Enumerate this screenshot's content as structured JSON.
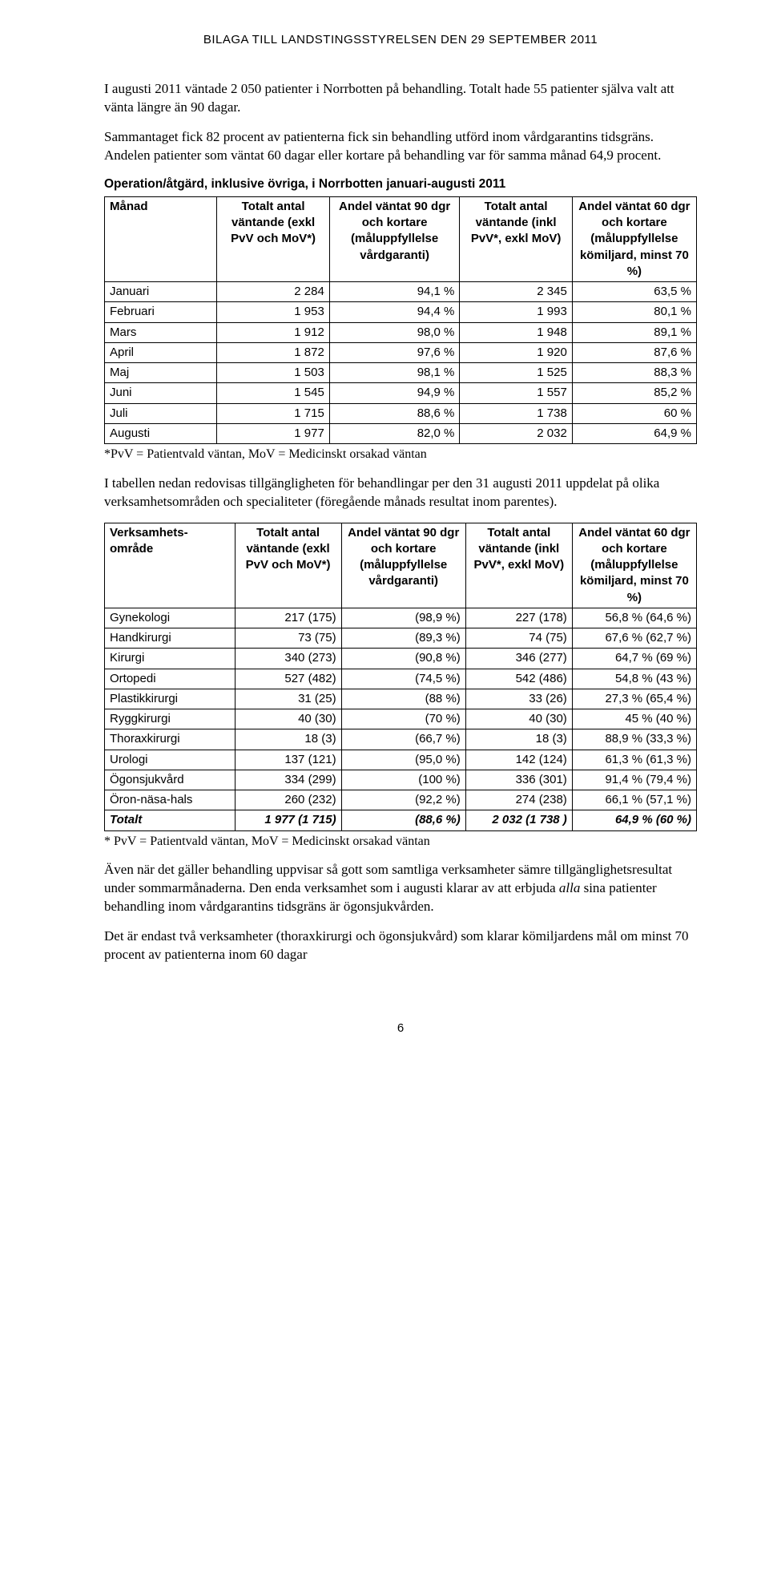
{
  "header": "BILAGA TILL LANDSTINGSSTYRELSEN DEN 29 SEPTEMBER 2011",
  "para1": "I augusti 2011 väntade 2 050 patienter i Norrbotten på behandling. Totalt hade 55 patienter själva valt att vänta längre än 90 dagar.",
  "para2": "Sammantaget fick 82 procent av patienterna fick sin behandling utförd inom vårdgarantins tidsgräns. Andelen patienter som väntat 60 dagar eller kortare på behandling var för samma månad 64,9 procent.",
  "t1": {
    "caption": "Operation/åtgärd, inklusive övriga, i Norrbotten januari-augusti 2011",
    "headers": [
      "Månad",
      "Totalt antal väntande (exkl PvV och MoV*)",
      "Andel väntat 90 dgr och kortare (måluppfyllelse vårdgaranti)",
      "Totalt antal väntande (inkl PvV*, exkl MoV)",
      "Andel väntat 60 dgr och kortare (måluppfyllelse kömiljard, minst 70 %)"
    ],
    "rows": [
      [
        "Januari",
        "2 284",
        "94,1 %",
        "2 345",
        "63,5 %"
      ],
      [
        "Februari",
        "1 953",
        "94,4 %",
        "1 993",
        "80,1 %"
      ],
      [
        "Mars",
        "1 912",
        "98,0 %",
        "1 948",
        "89,1 %"
      ],
      [
        "April",
        "1 872",
        "97,6 %",
        "1 920",
        "87,6 %"
      ],
      [
        "Maj",
        "1 503",
        "98,1 %",
        "1 525",
        "88,3 %"
      ],
      [
        "Juni",
        "1 545",
        "94,9 %",
        "1 557",
        "85,2 %"
      ],
      [
        "Juli",
        "1 715",
        "88,6 %",
        "1 738",
        "60 %"
      ],
      [
        "Augusti",
        "1 977",
        "82,0 %",
        "2 032",
        "64,9 %"
      ]
    ],
    "note": "*PvV = Patientvald väntan, MoV = Medicinskt orsakad väntan"
  },
  "para3": "I tabellen nedan redovisas tillgängligheten för behandlingar per den 31 augusti 2011 uppdelat på olika verksamhetsområden och specialiteter (föregående månads resultat inom parentes).",
  "t2": {
    "headers": [
      "Verksamhets-område",
      "Totalt antal väntande (exkl PvV och MoV*)",
      "Andel väntat 90 dgr och kortare (måluppfyllelse vårdgaranti)",
      "Totalt antal väntande (inkl PvV*, exkl MoV)",
      "Andel väntat 60 dgr och kortare (måluppfyllelse kömiljard, minst 70 %)"
    ],
    "rows": [
      [
        "Gynekologi",
        "217 (175)",
        "(98,9 %)",
        "227 (178)",
        "56,8 % (64,6 %)"
      ],
      [
        "Handkirurgi",
        "73 (75)",
        "(89,3 %)",
        "74 (75)",
        "67,6 % (62,7 %)"
      ],
      [
        "Kirurgi",
        "340 (273)",
        "(90,8 %)",
        "346 (277)",
        "64,7 % (69 %)"
      ],
      [
        "Ortopedi",
        "527 (482)",
        "(74,5 %)",
        "542 (486)",
        "54,8 % (43 %)"
      ],
      [
        "Plastikkirurgi",
        "31 (25)",
        "(88 %)",
        "33 (26)",
        "27,3 % (65,4 %)"
      ],
      [
        "Ryggkirurgi",
        "40 (30)",
        "(70 %)",
        "40 (30)",
        "45 % (40 %)"
      ],
      [
        "Thoraxkirurgi",
        "18 (3)",
        "(66,7 %)",
        "18 (3)",
        "88,9 % (33,3 %)"
      ],
      [
        "Urologi",
        "137 (121)",
        "(95,0 %)",
        "142 (124)",
        "61,3 % (61,3 %)"
      ],
      [
        "Ögonsjukvård",
        "334 (299)",
        "(100 %)",
        "336 (301)",
        "91,4 % (79,4 %)"
      ],
      [
        "Öron-näsa-hals",
        "260 (232)",
        "(92,2 %)",
        "274 (238)",
        "66,1 % (57,1 %)"
      ]
    ],
    "total": [
      "Totalt",
      "1 977 (1 715)",
      "(88,6 %)",
      "2 032 (1 738 )",
      "64,9 % (60 %)"
    ],
    "note": "* PvV = Patientvald väntan, MoV = Medicinskt orsakad väntan"
  },
  "para4_a": "Även när det gäller behandling uppvisar så gott som samtliga verksamheter sämre tillgänglighetsresultat under sommarmånaderna. Den enda verksamhet som i augusti klarar av att erbjuda ",
  "para4_em": "alla",
  "para4_b": " sina patienter behandling inom vårdgarantins tidsgräns är ögonsjukvården.",
  "para5": "Det är endast två verksamheter (thoraxkirurgi och ögonsjukvård) som klarar kömiljardens mål om minst 70 procent av patienterna inom 60 dagar",
  "pagenum": "6",
  "style": {
    "col_widths_t1": [
      "19%",
      "19%",
      "22%",
      "19%",
      "21%"
    ],
    "col_widths_t2": [
      "22%",
      "18%",
      "21%",
      "18%",
      "21%"
    ]
  }
}
